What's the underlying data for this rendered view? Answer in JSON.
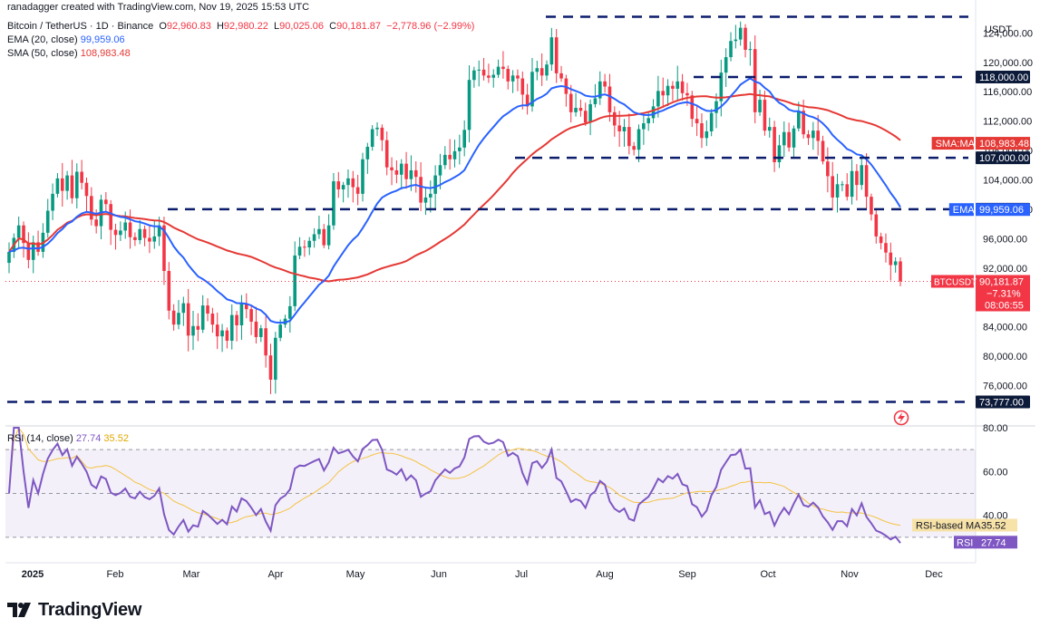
{
  "header": {
    "credit": "ranadagger created with TradingView.com, Nov 19, 2025 15:53 UTC",
    "symbol": "Bitcoin / TetherUS · 1D · Binance",
    "open_label": "O",
    "open": "92,960.83",
    "high_label": "H",
    "high": "92,980.22",
    "low_label": "L",
    "low": "90,025.06",
    "close_label": "C",
    "close": "90,181.87",
    "change": "−2,778.96 (−2.99%)",
    "ema_label": "EMA (20, close)",
    "ema_value": "99,959.06",
    "sma_label": "SMA (50, close)",
    "sma_value": "108,983.48",
    "rsi_label": "RSI (14, close)",
    "rsi_value": "27.74",
    "rsi_ma_value": "35.52"
  },
  "logo": {
    "text": "TradingView"
  },
  "colors": {
    "up": "#089981",
    "down": "#f23645",
    "ema": "#2962ff",
    "sma": "#e53935",
    "rsi": "#7e57c2",
    "rsi_ma": "#f5c242"
  },
  "chart_data": [
    {
      "type": "candlestick",
      "currency": "USDT",
      "y_ticks": [
        76000,
        80000,
        84000,
        88000,
        92000,
        96000,
        100000,
        104000,
        108000,
        112000,
        116000,
        120000,
        124000
      ],
      "y_tick_labels": [
        "76,000.00",
        "80,000.00",
        "84,000.00",
        "88,000.00",
        "92,000.00",
        "96,000.00",
        "100,000.00",
        "104,000.00",
        "108,000.00",
        "112,000.00",
        "116,000.00",
        "120,000.00",
        "124,000.00"
      ],
      "ylim": [
        71000,
        127000
      ],
      "x_labels": [
        "2025",
        "Feb",
        "Mar",
        "Apr",
        "May",
        "Jun",
        "Jul",
        "Aug",
        "Sep",
        "Oct",
        "Nov",
        "Dec"
      ],
      "horizontal_levels": [
        {
          "value": 126200,
          "label": ""
        },
        {
          "value": 118000,
          "label": "118,000.00"
        },
        {
          "value": 107000,
          "label": "107,000.00"
        },
        {
          "value": 100000,
          "label": "100,000.00"
        },
        {
          "value": 73777,
          "label": "73,777.00"
        }
      ],
      "badges": {
        "sma": {
          "tag": "SMA:MA",
          "value": "108,983.48"
        },
        "ema": {
          "tag": "EMA",
          "value": "99,959.06"
        },
        "price": {
          "tag": "BTCUSDT",
          "value": "90,181.87",
          "change": "−7.31%",
          "countdown": "08:06:55"
        }
      },
      "series": [
        {
          "name": "BTCUSDT",
          "close": [
            94200,
            96100,
            97800,
            95400,
            93100,
            95500,
            94200,
            96800,
            99800,
            102100,
            104200,
            102500,
            104600,
            101500,
            105100,
            103600,
            101800,
            98600,
            97700,
            101300,
            100700,
            97200,
            96500,
            97100,
            98200,
            96200,
            95800,
            97300,
            96100,
            95600,
            96300,
            97800,
            91600,
            86200,
            84300,
            85900,
            87200,
            82800,
            84100,
            83600,
            86900,
            85800,
            84300,
            82700,
            83500,
            82100,
            85600,
            84200,
            87100,
            86400,
            84700,
            82600,
            83800,
            80100,
            76800,
            82500,
            84300,
            85100,
            86800,
            93700,
            94900,
            94800,
            95700,
            96600,
            97300,
            95100,
            97800,
            103800,
            102700,
            103300,
            104200,
            103000,
            102100,
            106800,
            108500,
            110900,
            111100,
            109400,
            105700,
            105300,
            104700,
            106200,
            104100,
            105300,
            104400,
            100900,
            101600,
            102100,
            104600,
            106000,
            107400,
            106800,
            107900,
            108400,
            110800,
            117600,
            118900,
            119000,
            118200,
            117900,
            118300,
            119400,
            119100,
            117400,
            118200,
            117800,
            115600,
            114000,
            118700,
            119200,
            118200,
            119700,
            123400,
            118500,
            117800,
            115700,
            113200,
            113800,
            113400,
            111800,
            114300,
            115100,
            117400,
            116700,
            113200,
            111400,
            110600,
            111200,
            108600,
            108100,
            110900,
            111700,
            112400,
            114000,
            116100,
            115500,
            116800,
            116400,
            117400,
            115800,
            115500,
            112300,
            111700,
            109700,
            110600,
            113100,
            114700,
            118600,
            120700,
            122900,
            123100,
            124700,
            121700,
            121800,
            113200,
            114900,
            110700,
            111200,
            106400,
            108700,
            110500,
            108400,
            111000,
            113400,
            110200,
            109700,
            110700,
            109300,
            106500,
            104500,
            101600,
            103400,
            103400,
            101700,
            105200,
            103300,
            106000,
            101700,
            99300,
            96300,
            95400,
            94100,
            92400,
            92900,
            90182
          ]
        },
        {
          "name": "EMA (20, close)",
          "end": 99959
        },
        {
          "name": "SMA (50, close)",
          "end": 108983
        }
      ]
    },
    {
      "type": "line",
      "y_ticks": [
        40,
        60,
        80
      ],
      "y_tick_labels": [
        "40.00",
        "60.00",
        "80.00"
      ],
      "ylim": [
        20,
        80
      ],
      "band": [
        30,
        70
      ],
      "badges": {
        "rsi_ma": {
          "tag": "RSI-based MA",
          "value": "35.52"
        },
        "rsi": {
          "tag": "RSI",
          "value": "27.74"
        }
      },
      "series": [
        {
          "name": "RSI (14, close)",
          "end": 27.74
        },
        {
          "name": "RSI-based MA",
          "end": 35.52
        }
      ]
    }
  ]
}
